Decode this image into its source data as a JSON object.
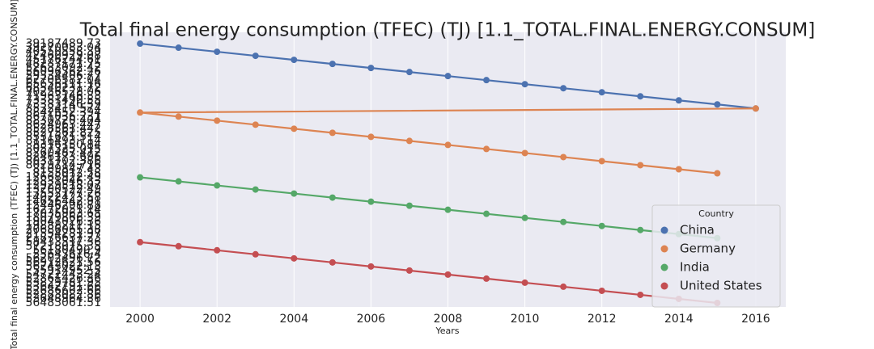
{
  "chart_data": {
    "type": "line",
    "title": "Total final energy consumption (TFEC) (TJ) [1.1_TOTAL.FINAL.ENERGY.CONSUM]",
    "x_label": "Years",
    "y_label": "Total final energy consumption (TFEC) (TJ) [1.1_TOTAL.FINAL.ENERGY.CONSUM]",
    "legend_title": "Country",
    "legend": "lower right",
    "grid": true,
    "xlim": [
      1999.22,
      2016.78
    ],
    "xticks": [
      2000,
      2002,
      2004,
      2006,
      2008,
      2010,
      2012,
      2014,
      2016
    ],
    "ylim": [
      65,
      -2.8
    ],
    "yticks": [
      {
        "value": 0,
        "label": "39187489.73"
      },
      {
        "value": 1,
        "label": "39270083.04"
      },
      {
        "value": 2,
        "label": "40550558.39"
      },
      {
        "value": 3,
        "label": "42460929.08"
      },
      {
        "value": 4,
        "label": "45176244.61"
      },
      {
        "value": 5,
        "label": "48287171.75"
      },
      {
        "value": 6,
        "label": "52633092.42"
      },
      {
        "value": 7,
        "label": "56096362.26"
      },
      {
        "value": 8,
        "label": "59334406.77"
      },
      {
        "value": 9,
        "label": "62706582.04"
      },
      {
        "value": 10,
        "label": "65656111.16"
      },
      {
        "value": 11,
        "label": "68540231.72"
      },
      {
        "value": 12,
        "label": "70256528.06"
      },
      {
        "value": 13,
        "label": "71963146.33"
      },
      {
        "value": 14,
        "label": "73381490.55"
      },
      {
        "value": 15,
        "label": "73383146.59"
      },
      {
        "value": 16,
        "label": "8532410.574"
      },
      {
        "value": 17,
        "label": "8842652.394"
      },
      {
        "value": 18,
        "label": "8671036.231"
      },
      {
        "value": 19,
        "label": "8830720.404"
      },
      {
        "value": 20,
        "label": "8624963.447"
      },
      {
        "value": 21,
        "label": "8528561.442"
      },
      {
        "value": 22,
        "label": "8527562.825"
      },
      {
        "value": 23,
        "label": "8531671.514"
      },
      {
        "value": 24,
        "label": "8116493.114"
      },
      {
        "value": 25,
        "label": "8316150.84"
      },
      {
        "value": 26,
        "label": "8057325.015"
      },
      {
        "value": 27,
        "label": "8260487.472"
      },
      {
        "value": 28,
        "label": "8246173.696"
      },
      {
        "value": 29,
        "label": "8031702.386"
      },
      {
        "value": 30,
        "label": "8029714.716"
      },
      {
        "value": 31,
        "label": "8109847.43"
      },
      {
        "value": 32,
        "label": "8155012.58"
      },
      {
        "value": 33,
        "label": "12668922.49"
      },
      {
        "value": 34,
        "label": "12831046.33"
      },
      {
        "value": 35,
        "label": "12929518.07"
      },
      {
        "value": 36,
        "label": "13200522.49"
      },
      {
        "value": 37,
        "label": "13552177.26"
      },
      {
        "value": 38,
        "label": "14022423.58"
      },
      {
        "value": 39,
        "label": "14656442.91"
      },
      {
        "value": 40,
        "label": "15446298.88"
      },
      {
        "value": 41,
        "label": "16272051.14"
      },
      {
        "value": 42,
        "label": "17035963.65"
      },
      {
        "value": 43,
        "label": "18079866.39"
      },
      {
        "value": 44,
        "label": "19041026.36"
      },
      {
        "value": 45,
        "label": "19888211.15"
      },
      {
        "value": 46,
        "label": "20686065.38"
      },
      {
        "value": 47,
        "label": "21554281.97"
      },
      {
        "value": 48,
        "label": "21876637.23"
      },
      {
        "value": 49,
        "label": "58433517.36"
      },
      {
        "value": 50,
        "label": "57218075.35"
      },
      {
        "value": 51,
        "label": "56180490.9"
      },
      {
        "value": 52,
        "label": "55643616.4"
      },
      {
        "value": 53,
        "label": "56202496.72"
      },
      {
        "value": 54,
        "label": "56912621.56"
      },
      {
        "value": 55,
        "label": "56243022.13"
      },
      {
        "value": 56,
        "label": "55914952.5"
      },
      {
        "value": 57,
        "label": "54722443.24"
      },
      {
        "value": 58,
        "label": "52861426.36"
      },
      {
        "value": 59,
        "label": "53829781.95"
      },
      {
        "value": 60,
        "label": "53642791.66"
      },
      {
        "value": 61,
        "label": "52686602.66"
      },
      {
        "value": 62,
        "label": "52883082.86"
      },
      {
        "value": 63,
        "label": "53648964.36"
      },
      {
        "value": 64,
        "label": "56483061.51"
      }
    ],
    "series": [
      {
        "name": "China",
        "color": "#4c72b0",
        "x": [
          2000,
          2001,
          2002,
          2003,
          2004,
          2005,
          2006,
          2007,
          2008,
          2009,
          2010,
          2011,
          2012,
          2013,
          2014,
          2015,
          2016
        ],
        "values": [
          0,
          1,
          2,
          3,
          4,
          5,
          6,
          7,
          8,
          9,
          10,
          11,
          12,
          13,
          14,
          15,
          16
        ]
      },
      {
        "name": "Germany",
        "color": "#dd8452",
        "x": [
          2016,
          2000,
          2001,
          2002,
          2003,
          2004,
          2005,
          2006,
          2007,
          2008,
          2009,
          2010,
          2011,
          2012,
          2013,
          2014,
          2015
        ],
        "values": [
          16,
          17,
          18,
          19,
          20,
          21,
          22,
          23,
          24,
          25,
          26,
          27,
          28,
          29,
          30,
          31,
          32
        ]
      },
      {
        "name": "India",
        "color": "#55a868",
        "x": [
          2000,
          2001,
          2002,
          2003,
          2004,
          2005,
          2006,
          2007,
          2008,
          2009,
          2010,
          2011,
          2012,
          2013,
          2014,
          2015
        ],
        "values": [
          33,
          34,
          35,
          36,
          37,
          38,
          39,
          40,
          41,
          42,
          43,
          44,
          45,
          46,
          47,
          48
        ]
      },
      {
        "name": "United States",
        "color": "#c44e52",
        "x": [
          2000,
          2001,
          2002,
          2003,
          2004,
          2005,
          2006,
          2007,
          2008,
          2009,
          2010,
          2011,
          2012,
          2013,
          2014,
          2015
        ],
        "values": [
          49,
          50,
          51,
          52,
          53,
          54,
          55,
          56,
          57,
          58,
          59,
          60,
          61,
          62,
          63,
          64
        ]
      }
    ]
  }
}
